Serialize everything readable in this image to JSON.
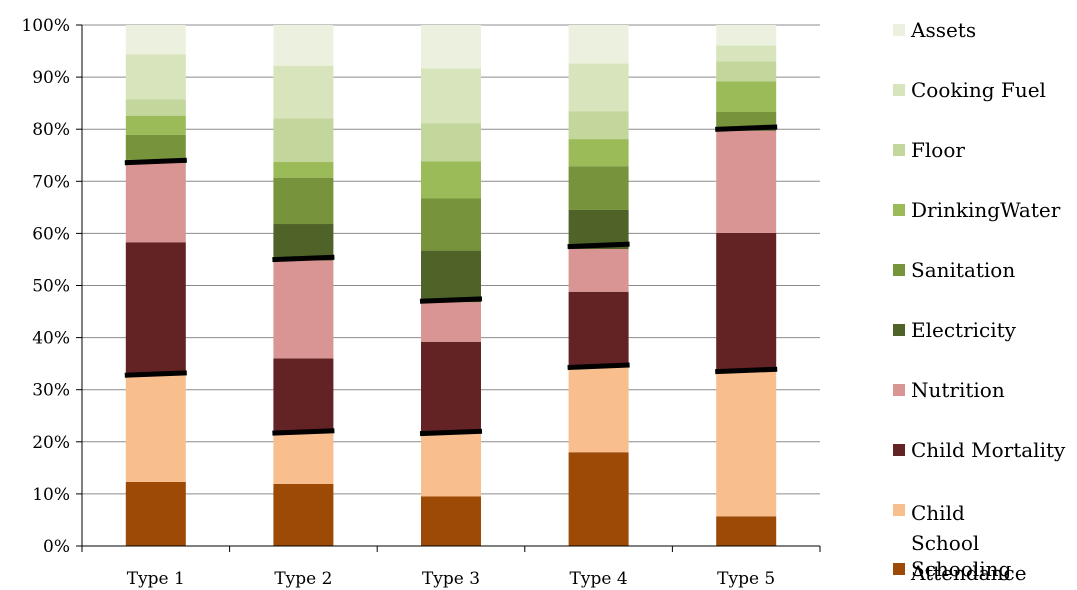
{
  "chart_data": {
    "type": "bar",
    "stacked": true,
    "percent": true,
    "categories": [
      "Type 1",
      "Type 2",
      "Type 3",
      "Type 4",
      "Type 5"
    ],
    "ylim": [
      0,
      100
    ],
    "yticks": [
      "0%",
      "10%",
      "20%",
      "30%",
      "40%",
      "50%",
      "60%",
      "70%",
      "80%",
      "90%",
      "100%"
    ],
    "series": [
      {
        "name": "Schooling",
        "color": "#9C4A06",
        "values": [
          12.3,
          11.9,
          9.5,
          18.0,
          5.7
        ]
      },
      {
        "name": "Child School Attendance",
        "color": "#F9BE8D",
        "values": [
          20.6,
          9.9,
          12.2,
          16.4,
          27.9
        ]
      },
      {
        "name": "Child Mortality",
        "color": "#632224",
        "values": [
          25.4,
          14.2,
          17.5,
          14.4,
          26.5
        ]
      },
      {
        "name": "Nutrition",
        "color": "#D99594",
        "values": [
          15.2,
          18.8,
          7.6,
          8.2,
          19.6
        ]
      },
      {
        "name": "Electricity",
        "color": "#4F6228",
        "values": [
          0.6,
          7.0,
          9.9,
          7.5,
          0.4
        ]
      },
      {
        "name": "Sanitation",
        "color": "#77933C",
        "values": [
          4.8,
          8.9,
          10.0,
          8.4,
          3.2
        ]
      },
      {
        "name": "DrinkingWater",
        "color": "#9BBB59",
        "values": [
          3.7,
          3.0,
          7.1,
          5.2,
          5.9
        ]
      },
      {
        "name": "Floor",
        "color": "#C3D69B",
        "values": [
          3.1,
          8.4,
          7.3,
          5.3,
          3.8
        ]
      },
      {
        "name": "Cooking Fuel",
        "color": "#D7E4BC",
        "values": [
          8.7,
          10.1,
          10.6,
          9.2,
          3.1
        ]
      },
      {
        "name": "Assets",
        "color": "#EBF1DE",
        "values": [
          5.6,
          7.8,
          8.3,
          7.4,
          3.9
        ]
      }
    ],
    "separator_lines": [
      {
        "category": "Type 1",
        "at": [
          33.0,
          73.8
        ]
      },
      {
        "category": "Type 2",
        "at": [
          21.9,
          55.2
        ]
      },
      {
        "category": "Type 3",
        "at": [
          21.8,
          47.2
        ]
      },
      {
        "category": "Type 4",
        "at": [
          34.5,
          57.7
        ]
      },
      {
        "category": "Type 5",
        "at": [
          33.7,
          80.2
        ]
      }
    ],
    "legend_position": "right",
    "legend_order": [
      "Assets",
      "Cooking Fuel",
      "Floor",
      "DrinkingWater",
      "Sanitation",
      "Electricity",
      "Nutrition",
      "Child Mortality",
      "Child School Attendance",
      "Schooling"
    ],
    "grid": true
  }
}
